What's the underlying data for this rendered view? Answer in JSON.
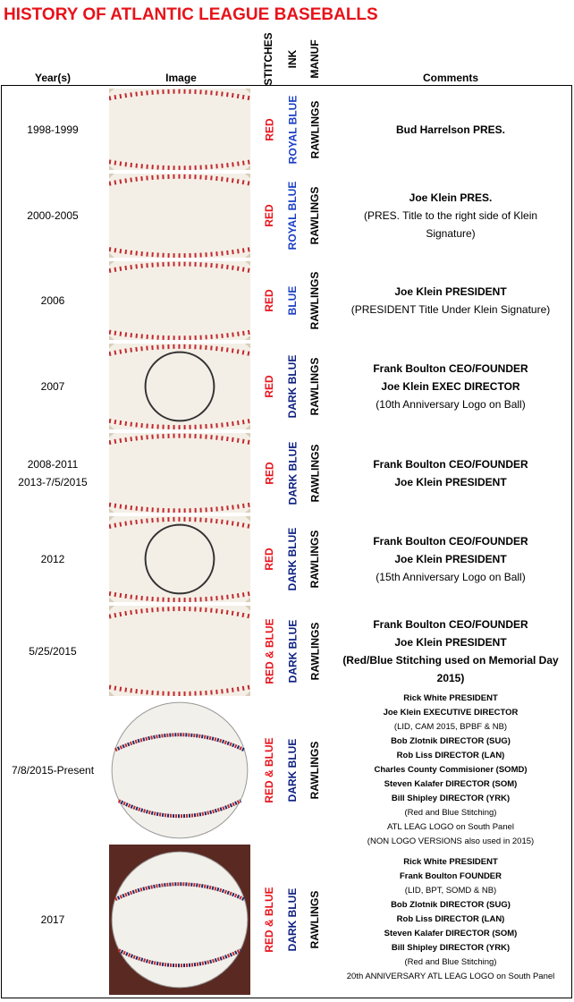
{
  "header": {
    "title": "HISTORY OF ATLANTIC LEAGUE BASEBALLS",
    "columns": {
      "years": "Year(s)",
      "image": "Image",
      "stitches": "STITCHES",
      "ink": "INK",
      "manuf": "MANUF",
      "comments": "Comments"
    }
  },
  "table": {
    "rows": [
      {
        "years": [
          "1998-1999"
        ],
        "stitches": "RED",
        "stitches_color": "#e8121a",
        "ink": "ROYAL BLUE",
        "ink_color": "#1a3fc4",
        "manuf": "RAWLINGS",
        "comments": [
          {
            "text": "Bud Harrelson PRES.",
            "bold": true
          }
        ]
      },
      {
        "years": [
          "2000-2005"
        ],
        "stitches": "RED",
        "stitches_color": "#e8121a",
        "ink": "ROYAL BLUE",
        "ink_color": "#1a3fc4",
        "manuf": "RAWLINGS",
        "comments": [
          {
            "text": "Joe Klein PRES.",
            "bold": true
          },
          {
            "text": "(PRES. Title to the right side of Klein",
            "bold": false
          },
          {
            "text": "Signature)",
            "bold": false
          }
        ]
      },
      {
        "years": [
          "2006"
        ],
        "stitches": "RED",
        "stitches_color": "#e8121a",
        "ink": "BLUE",
        "ink_color": "#1a3fc4",
        "manuf": "RAWLINGS",
        "comments": [
          {
            "text": "Joe Klein PRESIDENT",
            "bold": true
          },
          {
            "text": "(PRESIDENT Title Under Klein Signature)",
            "bold": false
          }
        ]
      },
      {
        "years": [
          "2007"
        ],
        "stitches": "RED",
        "stitches_color": "#e8121a",
        "ink": "DARK BLUE",
        "ink_color": "#0c1f80",
        "manuf": "RAWLINGS",
        "comments": [
          {
            "text": "Frank Boulton CEO/FOUNDER",
            "bold": true
          },
          {
            "text": "Joe Klein EXEC DIRECTOR",
            "bold": true
          },
          {
            "text": "(10th Anniversary Logo on Ball)",
            "bold": false
          }
        ]
      },
      {
        "years": [
          "2008-2011",
          "2013-7/5/2015"
        ],
        "stitches": "RED",
        "stitches_color": "#e8121a",
        "ink": "DARK BLUE",
        "ink_color": "#0c1f80",
        "manuf": "RAWLINGS",
        "comments": [
          {
            "text": "Frank Boulton CEO/FOUNDER",
            "bold": true
          },
          {
            "text": "Joe Klein PRESIDENT",
            "bold": true
          }
        ]
      },
      {
        "years": [
          "2012"
        ],
        "stitches": "RED",
        "stitches_color": "#e8121a",
        "ink": "DARK BLUE",
        "ink_color": "#0c1f80",
        "manuf": "RAWLINGS",
        "comments": [
          {
            "text": "Frank Boulton CEO/FOUNDER",
            "bold": true
          },
          {
            "text": "Joe Klein PRESIDENT",
            "bold": true
          },
          {
            "text": "(15th Anniversary Logo on Ball)",
            "bold": false
          }
        ]
      },
      {
        "years": [
          "5/25/2015"
        ],
        "stitches": "RED & BLUE",
        "stitches_color": "#e8121a",
        "ink": "DARK BLUE",
        "ink_color": "#0c1f80",
        "manuf": "RAWLINGS",
        "comments": [
          {
            "text": "Frank Boulton CEO/FOUNDER",
            "bold": true
          },
          {
            "text": "Joe Klein PRESIDENT",
            "bold": true
          },
          {
            "text": "(Red/Blue Stitching used on Memorial Day",
            "bold": true
          },
          {
            "text": "2015)",
            "bold": true
          }
        ]
      },
      {
        "years": [
          "7/8/2015-Present"
        ],
        "stitches": "RED & BLUE",
        "stitches_color": "#e8121a",
        "ink": "DARK BLUE",
        "ink_color": "#0c1f80",
        "manuf": "RAWLINGS",
        "comments": [
          {
            "text": "Rick White PRESIDENT",
            "bold": true
          },
          {
            "text": "Joe Klein EXECUTIVE DIRECTOR",
            "bold": true
          },
          {
            "text": "(LID, CAM 2015, BPBF & NB)",
            "bold": false
          },
          {
            "text": "Bob Zlotnik  DIRECTOR (SUG)",
            "bold": true
          },
          {
            "text": "Rob Liss  DIRECTOR (LAN)",
            "bold": true
          },
          {
            "text": "Charles County Commisioner  (SOMD)",
            "bold": true
          },
          {
            "text": "Steven Kalafer  DIRECTOR (SOM)",
            "bold": true
          },
          {
            "text": "Bill Shipley  DIRECTOR (YRK)",
            "bold": true
          },
          {
            "text": "(Red and Blue Stitching)",
            "bold": false
          },
          {
            "text": "ATL LEAG LOGO on South Panel",
            "bold": false
          },
          {
            "text": "(NON LOGO VERSIONS also used in 2015)",
            "bold": false
          }
        ]
      },
      {
        "years": [
          "2017"
        ],
        "stitches": "RED & BLUE",
        "stitches_color": "#e8121a",
        "ink": "DARK BLUE",
        "ink_color": "#0c1f80",
        "manuf": "RAWLINGS",
        "comments": [
          {
            "text": "Rick White PRESIDENT",
            "bold": true
          },
          {
            "text": "Frank Boulton FOUNDER",
            "bold": true
          },
          {
            "text": "(LID, BPT, SOMD & NB)",
            "bold": false
          },
          {
            "text": "Bob Zlotnik  DIRECTOR (SUG)",
            "bold": true
          },
          {
            "text": "Rob Liss  DIRECTOR (LAN)",
            "bold": true
          },
          {
            "text": "Steven Kalafer  DIRECTOR (SOM)",
            "bold": true
          },
          {
            "text": "Bill Shipley  DIRECTOR (YRK)",
            "bold": true
          },
          {
            "text": "(Red and Blue Stitching)",
            "bold": false
          },
          {
            "text": "20th ANNIVERSARY ATL LEAG LOGO on South Panel",
            "bold": false
          }
        ]
      }
    ]
  }
}
